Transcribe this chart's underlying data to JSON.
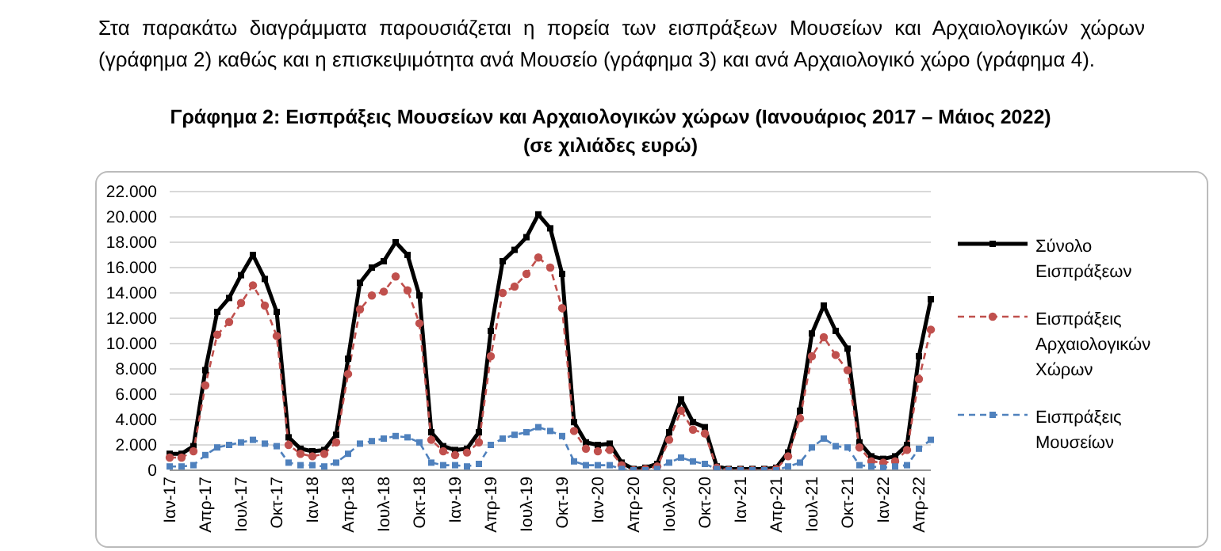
{
  "chart_data": {
    "type": "line",
    "title": "Γράφημα 2: Εισπράξεις Μουσείων και Αρχαιολογικών χώρων (Ιανουάριος 2017 – Μάιος 2022)",
    "subtitle": "(σε χιλιάδες ευρώ)",
    "annotations": [
      "Στα παρακάτω διαγράμματα παρουσιάζεται η πορεία των εισπράξεων Μουσείων και Αρχαιολογικών χώρων (γράφημα 2) καθώς και η επισκεψιμότητα ανά Μουσείο (γράφημα 3) και ανά Αρχαιολογικό χώρο (γράφημα 4)."
    ],
    "categories": [
      "Ιαν-17",
      null,
      null,
      "Απρ-17",
      null,
      null,
      "Ιουλ-17",
      null,
      null,
      "Οκτ-17",
      null,
      null,
      "Ιαν-18",
      null,
      null,
      "Απρ-18",
      null,
      null,
      "Ιουλ-18",
      null,
      null,
      "Οκτ-18",
      null,
      null,
      "Ιαν-19",
      null,
      null,
      "Απρ-19",
      null,
      null,
      "Ιουλ-19",
      null,
      null,
      "Οκτ-19",
      null,
      null,
      "Ιαν-20",
      null,
      null,
      "Απρ-20",
      null,
      null,
      "Ιουλ-20",
      null,
      null,
      "Οκτ-20",
      null,
      null,
      "Ιαν-21",
      null,
      null,
      "Απρ-21",
      null,
      null,
      "Ιουλ-21",
      null,
      null,
      "Οκτ-21",
      null,
      null,
      "Ιαν-22",
      null,
      null,
      "Απρ-22",
      null
    ],
    "series": [
      {
        "name": "Σύνολο Εισπράξεων",
        "color": "#000000",
        "marker": "square",
        "line_style": "solid",
        "values": [
          1300,
          1300,
          1900,
          7900,
          12500,
          13600,
          15400,
          17000,
          15100,
          12500,
          2600,
          1700,
          1500,
          1600,
          2800,
          8800,
          14800,
          16000,
          16500,
          18000,
          17000,
          13800,
          3000,
          1900,
          1600,
          1700,
          3000,
          11000,
          16500,
          17400,
          18400,
          20200,
          19100,
          15500,
          3800,
          2200,
          2000,
          2100,
          600,
          100,
          200,
          500,
          3000,
          5600,
          3800,
          3400,
          300,
          100,
          100,
          100,
          100,
          200,
          1400,
          4700,
          10800,
          13000,
          11000,
          9600,
          2200,
          1100,
          900,
          1100,
          2000,
          9000,
          13500
        ]
      },
      {
        "name": "Εισπράξεις Αρχαιολογικών Χώρων",
        "color": "#c0504d",
        "marker": "circle",
        "line_style": "dashed",
        "values": [
          1000,
          1000,
          1500,
          6700,
          10700,
          11700,
          13200,
          14600,
          13000,
          10600,
          2000,
          1300,
          1100,
          1300,
          2200,
          7600,
          12700,
          13800,
          14100,
          15300,
          14200,
          11600,
          2400,
          1500,
          1200,
          1400,
          2200,
          9000,
          14000,
          14500,
          15500,
          16800,
          16000,
          12800,
          3100,
          1700,
          1500,
          1600,
          400,
          0,
          100,
          300,
          2400,
          4700,
          3200,
          2900,
          200,
          0,
          0,
          0,
          0,
          100,
          1100,
          4100,
          9000,
          10500,
          9100,
          7900,
          1800,
          700,
          600,
          700,
          1600,
          7200,
          11100
        ]
      },
      {
        "name": "Εισπράξεις Μουσείων",
        "color": "#4f81bd",
        "marker": "square",
        "line_style": "dashed",
        "values": [
          300,
          300,
          400,
          1200,
          1800,
          2000,
          2200,
          2400,
          2100,
          1900,
          600,
          400,
          400,
          300,
          600,
          1300,
          2100,
          2300,
          2500,
          2700,
          2600,
          2200,
          600,
          400,
          400,
          300,
          500,
          2000,
          2500,
          2800,
          3000,
          3400,
          3100,
          2700,
          700,
          400,
          400,
          400,
          100,
          0,
          0,
          100,
          600,
          1000,
          700,
          500,
          100,
          0,
          0,
          0,
          0,
          0,
          300,
          600,
          1800,
          2500,
          1900,
          1800,
          400,
          300,
          200,
          300,
          400,
          1700,
          2400
        ]
      }
    ],
    "ylim": [
      0,
      22000
    ],
    "yticks": [
      {
        "value": 0,
        "label": "0"
      },
      {
        "value": 2000,
        "label": "2.000"
      },
      {
        "value": 4000,
        "label": "4.000"
      },
      {
        "value": 6000,
        "label": "6.000"
      },
      {
        "value": 8000,
        "label": "8.000"
      },
      {
        "value": 10000,
        "label": "10.000"
      },
      {
        "value": 12000,
        "label": "12.000"
      },
      {
        "value": 14000,
        "label": "14.000"
      },
      {
        "value": 16000,
        "label": "16.000"
      },
      {
        "value": 18000,
        "label": "18.000"
      },
      {
        "value": 20000,
        "label": "20.000"
      },
      {
        "value": 22000,
        "label": "22.000"
      }
    ],
    "grid": "y",
    "legend": "right"
  }
}
